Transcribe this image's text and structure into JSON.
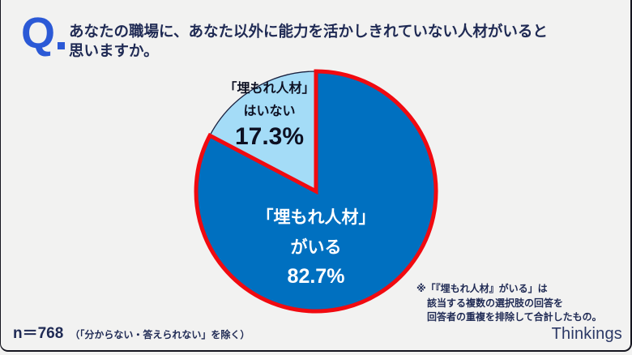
{
  "frame": {
    "background": "#f2f2f1",
    "border_color": "#15151f"
  },
  "question": {
    "q_mark": "Q",
    "accent_color": "#2b59d6",
    "text_color": "#1f2a54",
    "lines": [
      "あなたの職場に、あなた以外に能力を活かしきれていない人材がいると",
      "思いますか。"
    ]
  },
  "chart_data": {
    "type": "pie",
    "title": "あなたの職場に、あなた以外に能力を活かしきれていない人材がいると思いますか。",
    "start_angle_deg": 0,
    "direction": "clockwise",
    "legend_position": "none",
    "slices": [
      {
        "name": "「埋もれ人材」がいる",
        "value_pct": 82.7,
        "color": "#0070c0",
        "outline_color": "#f10a10",
        "outline_width": 5,
        "label_lines": [
          "「埋もれ人材」",
          "がいる"
        ],
        "value_label": "82.7%",
        "label_color": "#ffffff"
      },
      {
        "name": "「埋もれ人材」はいない",
        "value_pct": 17.3,
        "color": "#a4dcf7",
        "outline_color": "#1b2240",
        "outline_width": 1.3,
        "label_lines": [
          "「埋もれ人材」",
          "はいない"
        ],
        "value_label": "17.3%",
        "label_color": "#0d1022"
      }
    ]
  },
  "footnote": {
    "color": "#1f2a54",
    "lines": [
      "※「『埋もれ人材』がいる」は",
      "該当する複数の選択肢の回答を",
      "回答者の重複を排除して合計したもの。"
    ]
  },
  "sample": {
    "n_label": "n＝768",
    "note": "（「分からない・答えられない」を除く）",
    "color": "#1f2a54"
  },
  "brand": {
    "name": "Thinkings",
    "color": "#2c3966"
  }
}
